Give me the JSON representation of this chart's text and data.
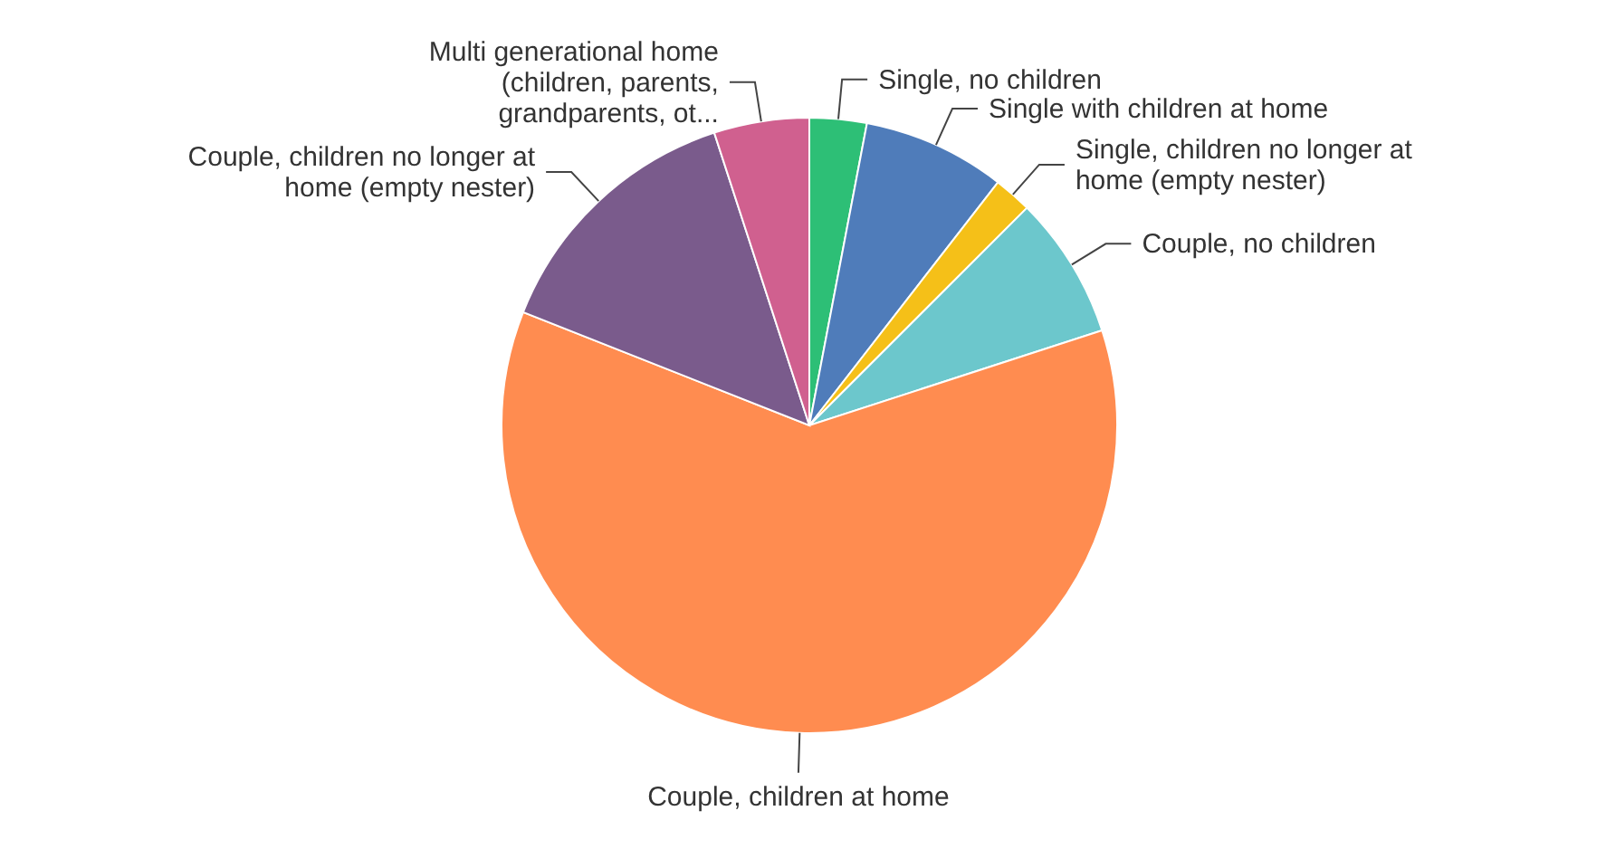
{
  "chart_data": {
    "type": "pie",
    "categories": [
      "Single, no children",
      "Single with children at home",
      "Single, children no longer at home (empty nester)",
      "Couple, no children",
      "Couple, children at home",
      "Couple, children no longer at home (empty nester)",
      "Multi generational home (children, parents, grandparents, ot..."
    ],
    "values": [
      3,
      7.5,
      2,
      7.5,
      61,
      14,
      5
    ],
    "colors": [
      "#2dbf76",
      "#4f7cba",
      "#f5c018",
      "#6cc7cc",
      "#ff8c50",
      "#7a5b8c",
      "#d0608f"
    ],
    "legend": false
  }
}
